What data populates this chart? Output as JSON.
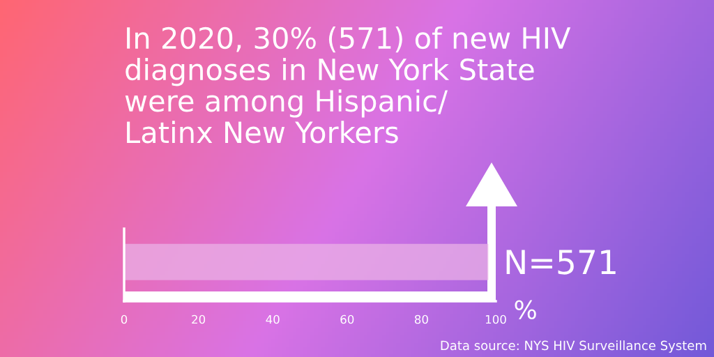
{
  "chart_data": {
    "type": "bar",
    "orientation": "horizontal",
    "title": "In 2020, 30% (571) of new HIV\ndiagnoses in New York State\nwere among Hispanic/\nLatinx New Yorkers",
    "categories": [
      null
    ],
    "values": [
      98
    ],
    "color": "#eab0e6",
    "xlim": [
      0,
      100
    ],
    "xticks": [
      0,
      20,
      40,
      60,
      80,
      100
    ],
    "xlabel": "%",
    "tick_labels": "x",
    "grid": false,
    "annotations": [
      "N=571",
      "Data source: NYS HIV Surveillance System"
    ]
  }
}
